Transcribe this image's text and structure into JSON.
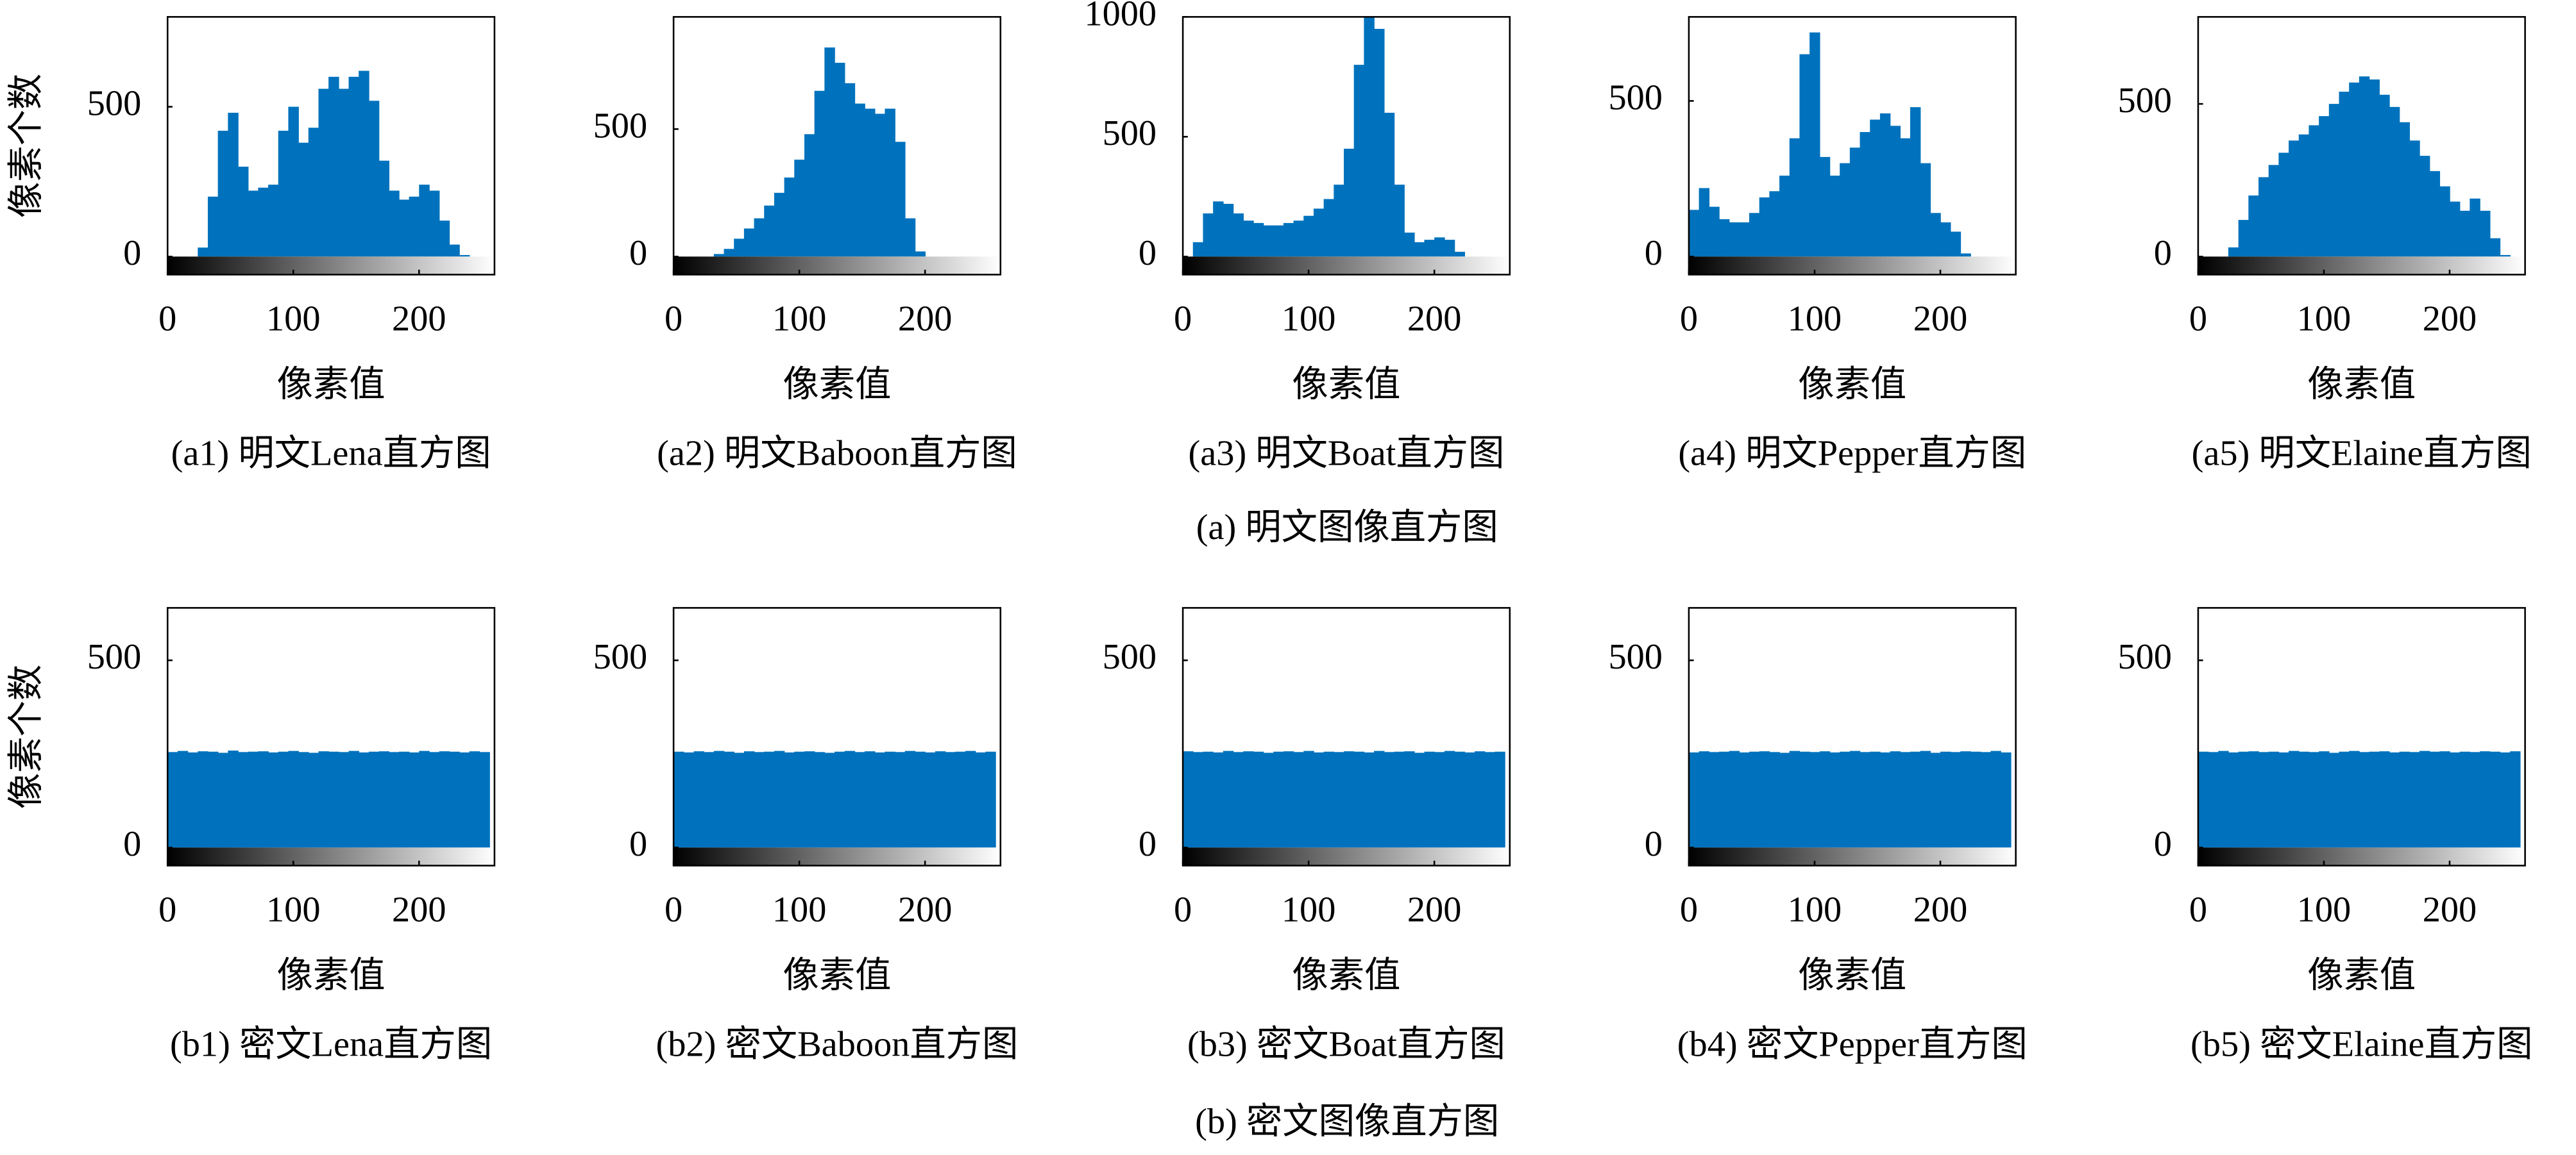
{
  "captions": [
    "(a) 明文图像直方图",
    "(b) 密文图像直方图"
  ],
  "chart_data": [
    {
      "type": "histogram",
      "title": "(a1) 明文Lena直方图",
      "xlabel": "像素值",
      "ylabel": "像素个数",
      "color": "#0072bd",
      "bins": [
        0,
        8,
        16,
        24,
        32,
        40,
        48,
        56,
        64,
        72,
        80,
        88,
        96,
        104,
        112,
        120,
        128,
        136,
        144,
        152,
        160,
        168,
        176,
        184,
        192,
        200,
        208,
        216,
        224,
        232,
        240,
        248,
        256
      ],
      "counts": [
        0,
        0,
        0,
        30,
        200,
        420,
        480,
        300,
        220,
        230,
        240,
        420,
        500,
        380,
        430,
        560,
        600,
        560,
        600,
        620,
        520,
        320,
        220,
        190,
        200,
        240,
        220,
        120,
        40,
        5,
        0,
        0
      ],
      "xlim": [
        0,
        260
      ],
      "ylim": [
        0,
        800
      ],
      "xticks": [
        0,
        100,
        200
      ],
      "yticks": [
        0,
        500
      ]
    },
    {
      "type": "histogram",
      "title": "(a2) 明文Baboon直方图",
      "xlabel": "像素值",
      "color": "#0072bd",
      "bins": [
        0,
        8,
        16,
        24,
        32,
        40,
        48,
        56,
        64,
        72,
        80,
        88,
        96,
        104,
        112,
        120,
        128,
        136,
        144,
        152,
        160,
        168,
        176,
        184,
        192,
        200,
        208,
        216,
        224,
        232,
        240,
        248,
        256
      ],
      "counts": [
        0,
        0,
        0,
        0,
        10,
        30,
        70,
        110,
        150,
        200,
        250,
        310,
        380,
        480,
        650,
        820,
        760,
        680,
        600,
        580,
        560,
        580,
        450,
        150,
        20,
        0,
        0,
        0,
        0,
        0,
        0,
        0
      ],
      "xlim": [
        0,
        260
      ],
      "ylim": [
        0,
        940
      ],
      "xticks": [
        0,
        100,
        200
      ],
      "yticks": [
        0,
        500
      ]
    },
    {
      "type": "histogram",
      "title": "(a3) 明文Boat直方图",
      "xlabel": "像素值",
      "color": "#0072bd",
      "bins": [
        0,
        8,
        16,
        24,
        32,
        40,
        48,
        56,
        64,
        72,
        80,
        88,
        96,
        104,
        112,
        120,
        128,
        136,
        144,
        152,
        160,
        168,
        176,
        184,
        192,
        200,
        208,
        216,
        224,
        232,
        240,
        248,
        256
      ],
      "counts": [
        0,
        60,
        180,
        230,
        220,
        180,
        150,
        140,
        130,
        130,
        140,
        150,
        170,
        200,
        240,
        300,
        450,
        800,
        1000,
        950,
        600,
        300,
        100,
        60,
        70,
        80,
        70,
        20,
        0,
        0,
        0,
        0
      ],
      "xlim": [
        0,
        260
      ],
      "ylim": [
        0,
        1000
      ],
      "xticks": [
        0,
        100,
        200
      ],
      "yticks": [
        0,
        500,
        1000
      ]
    },
    {
      "type": "histogram",
      "title": "(a4) 明文Pepper直方图",
      "xlabel": "像素值",
      "color": "#0072bd",
      "bins": [
        0,
        8,
        16,
        24,
        32,
        40,
        48,
        56,
        64,
        72,
        80,
        88,
        96,
        104,
        112,
        120,
        128,
        136,
        144,
        152,
        160,
        168,
        176,
        184,
        192,
        200,
        208,
        216,
        224,
        232,
        240,
        248,
        256
      ],
      "counts": [
        150,
        220,
        160,
        120,
        110,
        110,
        140,
        190,
        210,
        260,
        380,
        650,
        720,
        320,
        260,
        300,
        350,
        400,
        440,
        460,
        420,
        380,
        480,
        300,
        140,
        110,
        80,
        10,
        0,
        0,
        0,
        0
      ],
      "xlim": [
        0,
        260
      ],
      "ylim": [
        0,
        770
      ],
      "xticks": [
        0,
        100,
        200
      ],
      "yticks": [
        0,
        500
      ]
    },
    {
      "type": "histogram",
      "title": "(a5) 明文Elaine直方图",
      "xlabel": "像素值",
      "color": "#0072bd",
      "bins": [
        0,
        8,
        16,
        24,
        32,
        40,
        48,
        56,
        64,
        72,
        80,
        88,
        96,
        104,
        112,
        120,
        128,
        136,
        144,
        152,
        160,
        168,
        176,
        184,
        192,
        200,
        208,
        216,
        224,
        232,
        240,
        248,
        256
      ],
      "counts": [
        0,
        0,
        0,
        30,
        120,
        200,
        260,
        300,
        340,
        380,
        400,
        430,
        460,
        500,
        540,
        570,
        590,
        580,
        530,
        490,
        440,
        380,
        330,
        280,
        230,
        180,
        150,
        190,
        150,
        60,
        5,
        0
      ],
      "xlim": [
        0,
        260
      ],
      "ylim": [
        0,
        785
      ],
      "xticks": [
        0,
        100,
        200
      ],
      "yticks": [
        0,
        500
      ]
    },
    {
      "type": "histogram",
      "title": "(b1) 密文Lena直方图",
      "xlabel": "像素值",
      "ylabel": "像素个数",
      "color": "#0072bd",
      "bins": [
        0,
        8,
        16,
        24,
        32,
        40,
        48,
        56,
        64,
        72,
        80,
        88,
        96,
        104,
        112,
        120,
        128,
        136,
        144,
        152,
        160,
        168,
        176,
        184,
        192,
        200,
        208,
        216,
        224,
        232,
        240,
        248,
        256
      ],
      "counts": [
        255,
        258,
        254,
        257,
        256,
        253,
        259,
        255,
        256,
        257,
        254,
        256,
        258,
        255,
        253,
        257,
        256,
        255,
        258,
        254,
        256,
        257,
        255,
        256,
        254,
        258,
        255,
        257,
        256,
        254,
        257,
        255
      ],
      "xlim": [
        0,
        260
      ],
      "ylim": [
        0,
        640
      ],
      "xticks": [
        0,
        100,
        200
      ],
      "yticks": [
        0,
        500
      ]
    },
    {
      "type": "histogram",
      "title": "(b2) 密文Baboon直方图",
      "xlabel": "像素值",
      "color": "#0072bd",
      "bins": [
        0,
        8,
        16,
        24,
        32,
        40,
        48,
        56,
        64,
        72,
        80,
        88,
        96,
        104,
        112,
        120,
        128,
        136,
        144,
        152,
        160,
        168,
        176,
        184,
        192,
        200,
        208,
        216,
        224,
        232,
        240,
        248,
        256
      ],
      "counts": [
        256,
        254,
        257,
        255,
        258,
        256,
        253,
        257,
        255,
        256,
        258,
        254,
        256,
        257,
        255,
        253,
        256,
        258,
        255,
        257,
        254,
        256,
        255,
        258,
        256,
        254,
        257,
        255,
        256,
        258,
        254,
        256
      ],
      "xlim": [
        0,
        260
      ],
      "ylim": [
        0,
        640
      ],
      "xticks": [
        0,
        100,
        200
      ],
      "yticks": [
        0,
        500
      ]
    },
    {
      "type": "histogram",
      "title": "(b3) 密文Boat直方图",
      "xlabel": "像素值",
      "color": "#0072bd",
      "bins": [
        0,
        8,
        16,
        24,
        32,
        40,
        48,
        56,
        64,
        72,
        80,
        88,
        96,
        104,
        112,
        120,
        128,
        136,
        144,
        152,
        160,
        168,
        176,
        184,
        192,
        200,
        208,
        216,
        224,
        232,
        240,
        248,
        256
      ],
      "counts": [
        257,
        255,
        256,
        254,
        258,
        255,
        257,
        256,
        253,
        256,
        257,
        255,
        258,
        254,
        256,
        255,
        257,
        256,
        254,
        258,
        255,
        256,
        257,
        253,
        256,
        255,
        258,
        256,
        254,
        257,
        255,
        256
      ],
      "xlim": [
        0,
        260
      ],
      "ylim": [
        0,
        640
      ],
      "xticks": [
        0,
        100,
        200
      ],
      "yticks": [
        0,
        500
      ]
    },
    {
      "type": "histogram",
      "title": "(b4) 密文Pepper直方图",
      "xlabel": "像素值",
      "color": "#0072bd",
      "bins": [
        0,
        8,
        16,
        24,
        32,
        40,
        48,
        56,
        64,
        72,
        80,
        88,
        96,
        104,
        112,
        120,
        128,
        136,
        144,
        152,
        160,
        168,
        176,
        184,
        192,
        200,
        208,
        216,
        224,
        232,
        240,
        248,
        256
      ],
      "counts": [
        254,
        257,
        255,
        256,
        258,
        254,
        256,
        257,
        255,
        253,
        258,
        256,
        255,
        257,
        254,
        256,
        258,
        255,
        256,
        254,
        257,
        255,
        256,
        258,
        253,
        256,
        255,
        257,
        256,
        255,
        258,
        254
      ],
      "xlim": [
        0,
        260
      ],
      "ylim": [
        0,
        640
      ],
      "xticks": [
        0,
        100,
        200
      ],
      "yticks": [
        0,
        500
      ]
    },
    {
      "type": "histogram",
      "title": "(b5) 密文Elaine直方图",
      "xlabel": "像素值",
      "color": "#0072bd",
      "bins": [
        0,
        8,
        16,
        24,
        32,
        40,
        48,
        56,
        64,
        72,
        80,
        88,
        96,
        104,
        112,
        120,
        128,
        136,
        144,
        152,
        160,
        168,
        176,
        184,
        192,
        200,
        208,
        216,
        224,
        232,
        240,
        248,
        256
      ],
      "counts": [
        256,
        255,
        258,
        254,
        256,
        257,
        255,
        256,
        254,
        258,
        256,
        255,
        257,
        253,
        256,
        258,
        255,
        256,
        257,
        254,
        256,
        255,
        258,
        256,
        257,
        254,
        256,
        255,
        257,
        256,
        254,
        257
      ],
      "xlim": [
        0,
        260
      ],
      "ylim": [
        0,
        640
      ],
      "xticks": [
        0,
        100,
        200
      ],
      "yticks": [
        0,
        500
      ]
    }
  ]
}
